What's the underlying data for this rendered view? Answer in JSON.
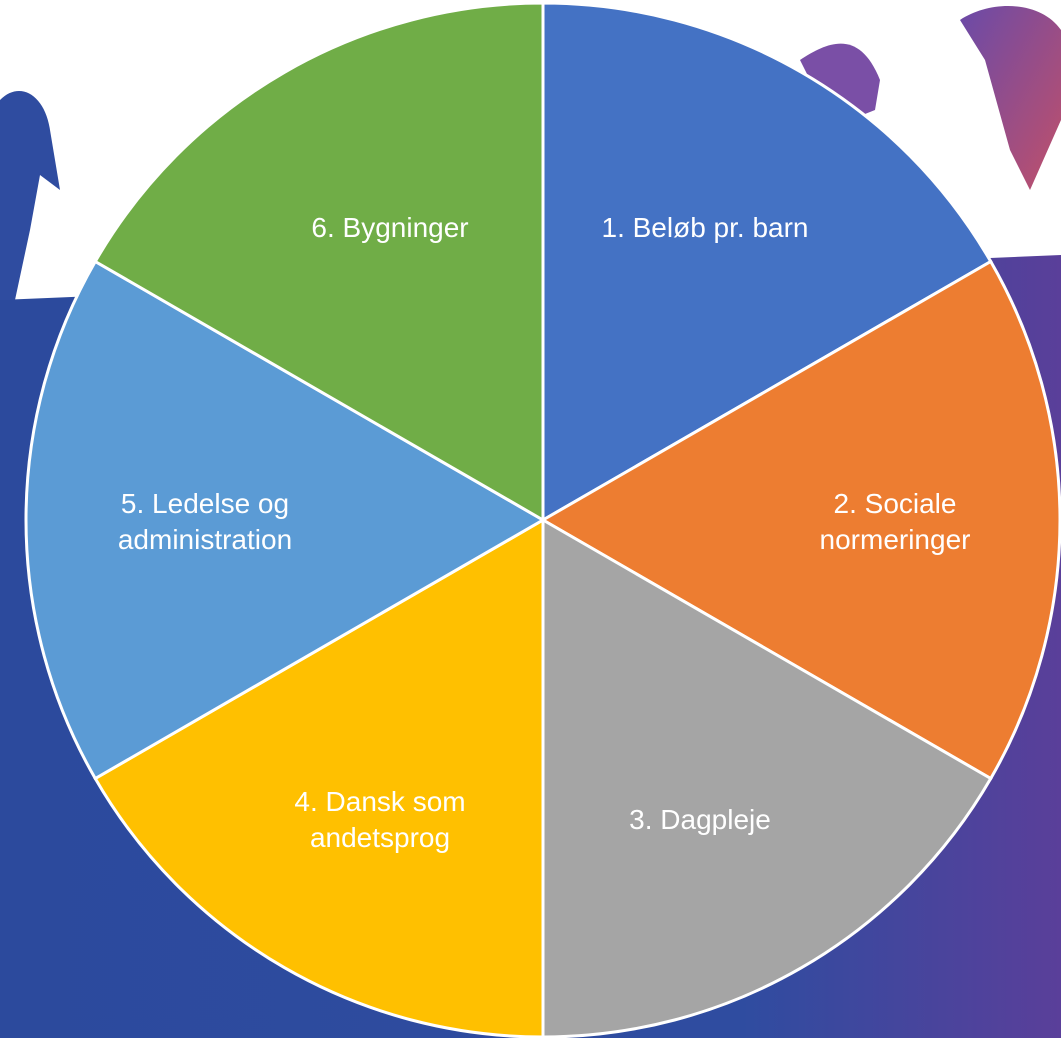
{
  "chart_data": {
    "type": "pie",
    "categories": [
      "1. Beløb pr. barn",
      "2. Sociale\nnormeringer",
      "3. Dagpleje",
      "4. Dansk som\nandetsprog",
      "5. Ledelse og\nadministration",
      "6. Bygninger"
    ],
    "values": [
      1,
      1,
      1,
      1,
      1,
      1
    ],
    "colors": [
      "#4472c4",
      "#ed7d31",
      "#a5a5a5",
      "#ffc000",
      "#5b9bd5",
      "#70ad47"
    ],
    "start_angle": 90,
    "direction": "clockwise"
  }
}
